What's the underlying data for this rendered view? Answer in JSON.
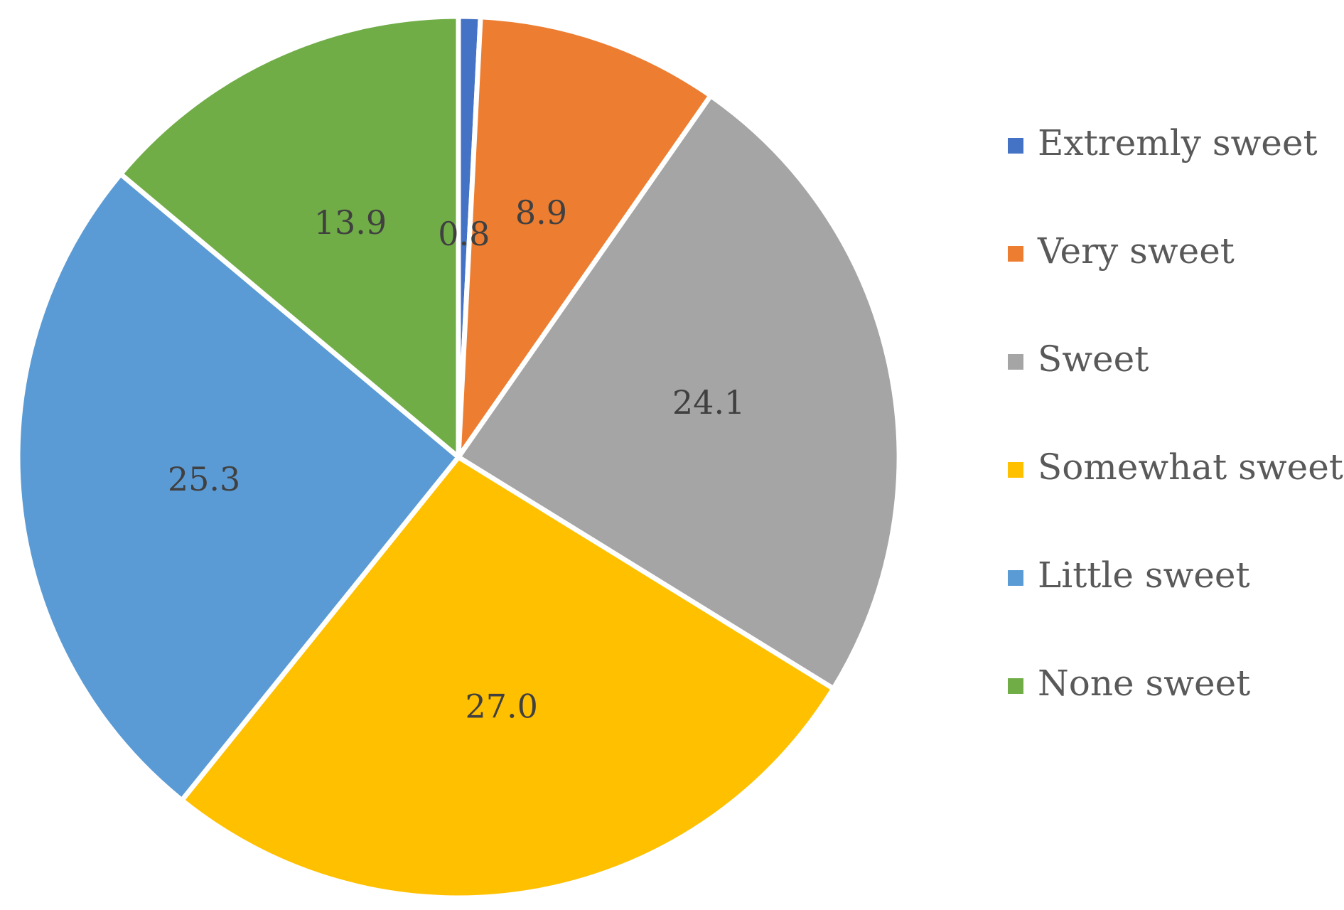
{
  "chart_data": {
    "type": "pie",
    "title": "",
    "categories": [
      "Extremly sweet",
      "Very sweet",
      "Sweet",
      "Somewhat sweet",
      "Little sweet",
      "None sweet"
    ],
    "values": [
      0.8,
      8.9,
      24.1,
      27.0,
      25.3,
      13.9
    ],
    "data_labels": [
      "0.8",
      "8.9",
      "24.1",
      "27.0",
      "25.3",
      "13.9"
    ],
    "colors": [
      "#4472C4",
      "#ED7D31",
      "#A5A5A5",
      "#FFC000",
      "#5B9BD5",
      "#70AD47"
    ],
    "slice_border_color": "#FFFFFF",
    "start_angle_deg": 0,
    "direction": "clockwise",
    "legend_position": "right"
  }
}
